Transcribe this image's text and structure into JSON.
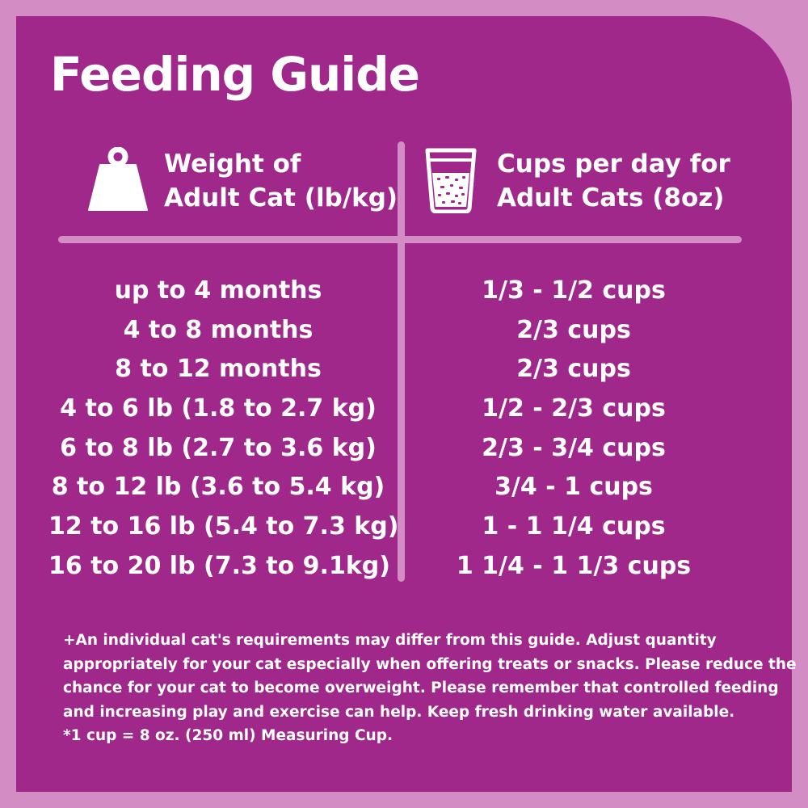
{
  "title": "Feeding Guide",
  "headers": {
    "weight_line1": "Weight of",
    "weight_line2": "Adult Cat (lb/kg)",
    "cups_line1": "Cups per day for",
    "cups_line2": "Adult Cats (8oz)"
  },
  "icons": {
    "weight": "weight-icon",
    "cup": "measuring-cup-icon"
  },
  "colors": {
    "panel": "#a0288a",
    "frame": "#d48cc4",
    "text": "#ffffff"
  },
  "rows": [
    {
      "weight": "up to 4 months",
      "cups": "1/3 - 1/2 cups"
    },
    {
      "weight": "4 to 8 months",
      "cups": "2/3 cups"
    },
    {
      "weight": "8 to 12 months",
      "cups": "2/3 cups"
    },
    {
      "weight": "4 to 6 lb (1.8 to 2.7 kg)",
      "cups": "1/2 - 2/3 cups"
    },
    {
      "weight": "6 to 8 lb (2.7 to 3.6 kg)",
      "cups": "2/3 - 3/4 cups"
    },
    {
      "weight": "8 to 12 lb (3.6 to 5.4 kg)",
      "cups": "3/4 - 1 cups"
    },
    {
      "weight": "12 to 16 lb (5.4 to 7.3 kg)",
      "cups": "1 - 1 1/4 cups"
    },
    {
      "weight": "16 to 20 lb (7.3 to 9.1kg)",
      "cups": "1 1/4 - 1 1/3 cups"
    }
  ],
  "note": {
    "line1": "+An individual cat's requirements may differ from this guide.  Adjust quantity",
    "line2": "appropriately for your cat especially when offering treats or snacks.  Please reduce the",
    "line3": "chance for your cat to become overweight.  Please remember that controlled feeding",
    "line4": "and increasing play and exercise can help.  Keep fresh drinking water available.",
    "line5": "*1 cup = 8 oz. (250 ml) Measuring Cup."
  }
}
